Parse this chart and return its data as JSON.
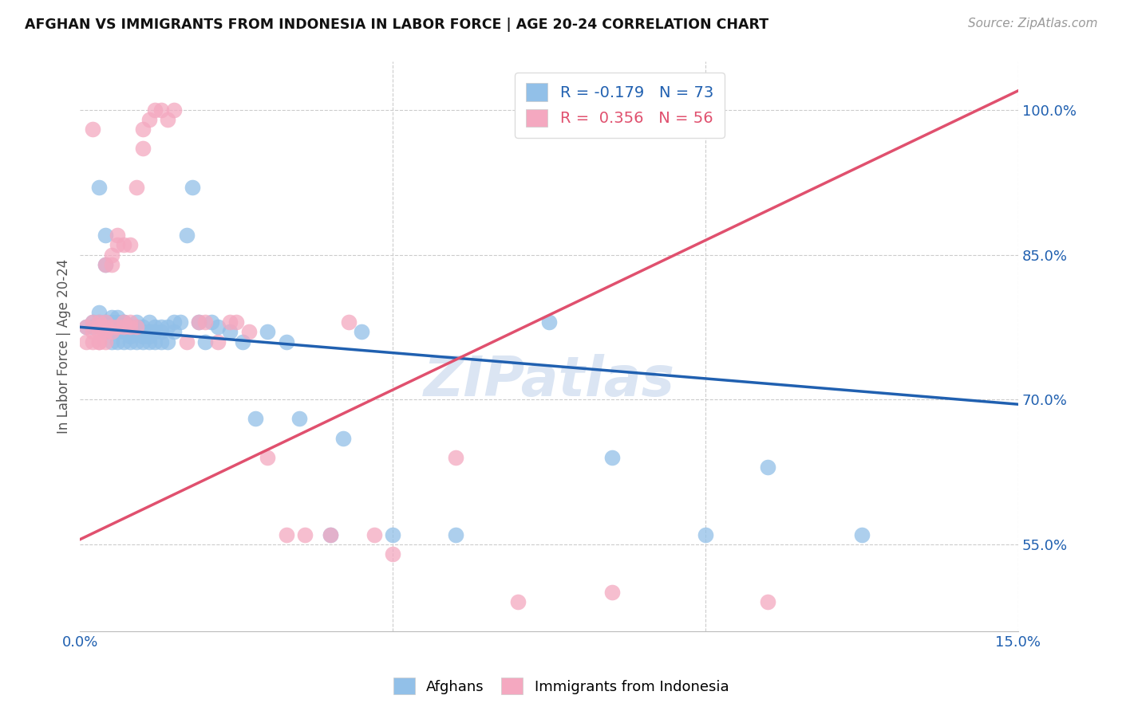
{
  "title": "AFGHAN VS IMMIGRANTS FROM INDONESIA IN LABOR FORCE | AGE 20-24 CORRELATION CHART",
  "source": "Source: ZipAtlas.com",
  "ylabel": "In Labor Force | Age 20-24",
  "xlim": [
    0.0,
    0.15
  ],
  "ylim": [
    0.46,
    1.05
  ],
  "xticks": [
    0.0,
    0.05,
    0.1,
    0.15
  ],
  "xticklabels": [
    "0.0%",
    "",
    "",
    "15.0%"
  ],
  "yticks": [
    0.55,
    0.7,
    0.85,
    1.0
  ],
  "yticklabels": [
    "55.0%",
    "70.0%",
    "85.0%",
    "100.0%"
  ],
  "blue_color": "#92C0E8",
  "pink_color": "#F4A8C0",
  "blue_line_color": "#2060B0",
  "pink_line_color": "#E0506E",
  "legend_r_blue": "-0.179",
  "legend_n_blue": "73",
  "legend_r_pink": "0.356",
  "legend_n_pink": "56",
  "watermark": "ZIPatlas",
  "blue_line_x0": 0.0,
  "blue_line_y0": 0.775,
  "blue_line_x1": 0.15,
  "blue_line_y1": 0.695,
  "pink_line_x0": 0.0,
  "pink_line_y0": 0.555,
  "pink_line_x1": 0.15,
  "pink_line_y1": 1.02,
  "blue_scatter_x": [
    0.001,
    0.002,
    0.002,
    0.003,
    0.003,
    0.003,
    0.004,
    0.004,
    0.004,
    0.004,
    0.005,
    0.005,
    0.005,
    0.005,
    0.006,
    0.006,
    0.006,
    0.006,
    0.006,
    0.007,
    0.007,
    0.007,
    0.007,
    0.007,
    0.008,
    0.008,
    0.008,
    0.008,
    0.009,
    0.009,
    0.009,
    0.009,
    0.01,
    0.01,
    0.01,
    0.01,
    0.011,
    0.011,
    0.011,
    0.011,
    0.012,
    0.012,
    0.012,
    0.013,
    0.013,
    0.013,
    0.014,
    0.014,
    0.015,
    0.015,
    0.016,
    0.017,
    0.018,
    0.019,
    0.02,
    0.021,
    0.022,
    0.024,
    0.026,
    0.028,
    0.03,
    0.033,
    0.035,
    0.04,
    0.042,
    0.045,
    0.05,
    0.06,
    0.075,
    0.085,
    0.1,
    0.11,
    0.125
  ],
  "blue_scatter_y": [
    0.775,
    0.78,
    0.775,
    0.78,
    0.79,
    0.92,
    0.87,
    0.84,
    0.78,
    0.77,
    0.775,
    0.78,
    0.785,
    0.76,
    0.77,
    0.775,
    0.78,
    0.785,
    0.76,
    0.775,
    0.78,
    0.77,
    0.76,
    0.78,
    0.775,
    0.77,
    0.765,
    0.76,
    0.77,
    0.775,
    0.76,
    0.78,
    0.775,
    0.765,
    0.76,
    0.77,
    0.78,
    0.765,
    0.77,
    0.76,
    0.775,
    0.77,
    0.76,
    0.77,
    0.775,
    0.76,
    0.775,
    0.76,
    0.78,
    0.77,
    0.78,
    0.87,
    0.92,
    0.78,
    0.76,
    0.78,
    0.775,
    0.77,
    0.76,
    0.68,
    0.77,
    0.76,
    0.68,
    0.56,
    0.66,
    0.77,
    0.56,
    0.56,
    0.78,
    0.64,
    0.56,
    0.63,
    0.56
  ],
  "pink_scatter_x": [
    0.001,
    0.001,
    0.002,
    0.002,
    0.002,
    0.002,
    0.003,
    0.003,
    0.003,
    0.003,
    0.003,
    0.004,
    0.004,
    0.004,
    0.004,
    0.004,
    0.005,
    0.005,
    0.005,
    0.005,
    0.006,
    0.006,
    0.006,
    0.007,
    0.007,
    0.007,
    0.008,
    0.008,
    0.008,
    0.009,
    0.009,
    0.01,
    0.01,
    0.011,
    0.012,
    0.013,
    0.014,
    0.015,
    0.017,
    0.019,
    0.02,
    0.022,
    0.024,
    0.025,
    0.027,
    0.03,
    0.033,
    0.036,
    0.04,
    0.043,
    0.047,
    0.05,
    0.06,
    0.07,
    0.085,
    0.11
  ],
  "pink_scatter_y": [
    0.775,
    0.76,
    0.78,
    0.77,
    0.76,
    0.98,
    0.775,
    0.77,
    0.76,
    0.78,
    0.76,
    0.775,
    0.78,
    0.77,
    0.76,
    0.84,
    0.775,
    0.77,
    0.84,
    0.85,
    0.775,
    0.86,
    0.87,
    0.775,
    0.78,
    0.86,
    0.775,
    0.86,
    0.78,
    0.775,
    0.92,
    0.96,
    0.98,
    0.99,
    1.0,
    1.0,
    0.99,
    1.0,
    0.76,
    0.78,
    0.78,
    0.76,
    0.78,
    0.78,
    0.77,
    0.64,
    0.56,
    0.56,
    0.56,
    0.78,
    0.56,
    0.54,
    0.64,
    0.49,
    0.5,
    0.49
  ]
}
